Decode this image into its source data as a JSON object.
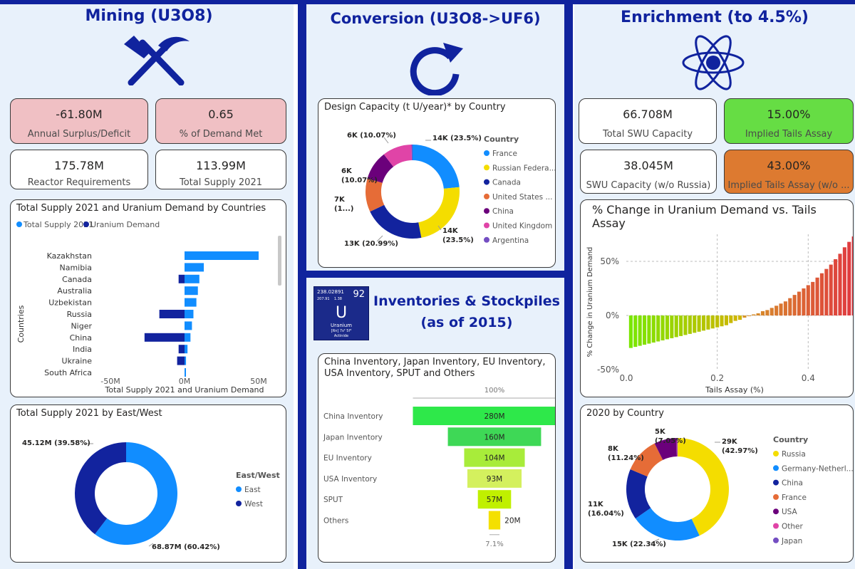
{
  "colors": {
    "navy": "#10239e",
    "panel": "#e8f1fb",
    "supply": "#118dff",
    "demand": "#12239e",
    "kpi_pink": "#f0c0c4",
    "kpi_green": "#66dd44",
    "kpi_orange": "#dd7a30"
  },
  "mining": {
    "title": "Mining (U3O8)",
    "icon": "hammer-pick-icon",
    "kpis": [
      {
        "value": "-61.80M",
        "label": "Annual Surplus/Deficit"
      },
      {
        "value": "0.65",
        "label": "% of Demand Met"
      },
      {
        "value": "175.78M",
        "label": "Reactor Requirements"
      },
      {
        "value": "113.99M",
        "label": "Total Supply 2021"
      }
    ]
  },
  "conversion": {
    "title": "Conversion (U3O8->UF6)",
    "icon": "refresh-icon"
  },
  "enrichment": {
    "title": "Enrichment (to 4.5%)",
    "icon": "atom-icon",
    "kpis": [
      {
        "value": "66.708M",
        "label": "Total SWU Capacity"
      },
      {
        "value": "15.00%",
        "label": "Implied Tails Assay"
      },
      {
        "value": "38.045M",
        "label": "SWU Capacity (w/o Russia)"
      },
      {
        "value": "43.00%",
        "label": "Implied Tails Assay  (w/o ..."
      }
    ]
  },
  "inventories": {
    "title_line1": "Inventories & Stockpiles",
    "title_line2": "(as of 2015)",
    "element_tile": {
      "mass": "238.02891",
      "number": "92",
      "row2": "207.91    1.38",
      "symbol": "U",
      "name": "Uranium",
      "config": "[Rn] 7s² 5f³",
      "category": "Actinide"
    }
  },
  "chart_data": [
    {
      "id": "supply-demand-by-country",
      "type": "bar",
      "orientation": "horizontal",
      "title": "Total Supply 2021 and Uranium Demand by Countries",
      "xlabel": "Total Supply 2021 and Uranium Demand",
      "ylabel": "Countries",
      "xlim": [
        -50,
        50
      ],
      "x_ticks": [
        "-50M",
        "0M",
        "50M"
      ],
      "categories": [
        "Kazakhstan",
        "Namibia",
        "Canada",
        "Australia",
        "Uzbekistan",
        "Russia",
        "Niger",
        "China",
        "India",
        "Ukraine",
        "South Africa"
      ],
      "series": [
        {
          "name": "Total Supply 2021",
          "color": "#118dff",
          "values": [
            50,
            13,
            10,
            9,
            8,
            6,
            5,
            4,
            2,
            1,
            0.5
          ]
        },
        {
          "name": "Uranium Demand",
          "color": "#12239e",
          "values": [
            0,
            0,
            -4,
            0,
            0,
            -17,
            0,
            -27,
            -4,
            -5,
            0
          ]
        }
      ],
      "legend_position": "top-left"
    },
    {
      "id": "supply-east-west",
      "type": "pie",
      "donut": true,
      "title": "Total Supply 2021 by East/West",
      "legend_title": "East/West",
      "slices": [
        {
          "name": "East",
          "value": 68.87,
          "label": "68.87M (60.42%)",
          "color": "#118dff"
        },
        {
          "name": "West",
          "value": 45.12,
          "label": "45.12M (39.58%)",
          "color": "#12239e"
        }
      ]
    },
    {
      "id": "design-capacity",
      "type": "pie",
      "donut": true,
      "title": "Design Capacity (t U/year)* by Country",
      "legend_title": "Country",
      "slices": [
        {
          "name": "France",
          "value": 23.5,
          "label": "14K (23.5%)",
          "color": "#118dff"
        },
        {
          "name": "Russian Federa...",
          "value": 23.5,
          "label": "14K (23.5%)",
          "color": "#f4dd00"
        },
        {
          "name": "Canada",
          "value": 20.99,
          "label": "13K (20.99%)",
          "color": "#12239e"
        },
        {
          "name": "United States ...",
          "value": 11.5,
          "label": "7K (1...)",
          "color": "#e66c37"
        },
        {
          "name": "China",
          "value": 10.07,
          "label": "6K (10.07%)",
          "color": "#6b007b"
        },
        {
          "name": "United Kingdom",
          "value": 10.07,
          "label": "6K (10.07%)",
          "color": "#e044a7"
        },
        {
          "name": "Argentina",
          "value": 0.37,
          "label": "",
          "color": "#744ec2"
        }
      ]
    },
    {
      "id": "inventories-funnel",
      "type": "bar",
      "style": "funnel",
      "title": "China Inventory, Japan Inventory, EU Inventory, USA Inventory, SPUT and Others",
      "top_label": "100%",
      "bottom_label": "7.1%",
      "categories": [
        "China Inventory",
        "Japan Inventory",
        "EU Inventory",
        "USA Inventory",
        "SPUT",
        "Others"
      ],
      "values": [
        280,
        160,
        104,
        93,
        57,
        20
      ],
      "labels": [
        "280M",
        "160M",
        "104M",
        "93M",
        "57M",
        "20M"
      ],
      "colors": [
        "#2ee84a",
        "#3ed856",
        "#a8ec3a",
        "#d4f05e",
        "#c0f000",
        "#f4e000"
      ]
    },
    {
      "id": "demand-vs-tails",
      "type": "bar",
      "title": "% Change in Uranium Demand vs. Tails Assay",
      "xlabel": "Tails Assay (%)",
      "ylabel": "% Change in Uranium Demand",
      "xlim": [
        0,
        0.47
      ],
      "ylim": [
        -50,
        75
      ],
      "x_ticks": [
        "0.0",
        "0.2",
        "0.4"
      ],
      "y_ticks": [
        "-50%",
        "0%",
        "50%"
      ],
      "x_start": 0.01,
      "x_step": 0.01,
      "values": [
        -30,
        -29,
        -28,
        -27,
        -26,
        -25,
        -24,
        -23,
        -22,
        -21,
        -20,
        -19,
        -18,
        -17,
        -16,
        -15,
        -14,
        -13,
        -12,
        -11,
        -10,
        -9,
        -7,
        -5,
        -4,
        -2,
        0,
        1,
        2,
        4,
        5,
        7,
        9,
        11,
        13,
        16,
        19,
        22,
        25,
        28,
        31,
        35,
        39,
        43,
        47,
        52,
        57,
        63,
        68,
        73
      ]
    },
    {
      "id": "enrichment-2020",
      "type": "pie",
      "donut": true,
      "title": "2020 by Country",
      "legend_title": "Country",
      "slices": [
        {
          "name": "Russia",
          "value": 42.97,
          "label": "29K (42.97%)",
          "color": "#f4dd00"
        },
        {
          "name": "Germany-Netherl...",
          "value": 22.34,
          "label": "15K (22.34%)",
          "color": "#118dff"
        },
        {
          "name": "China",
          "value": 16.04,
          "label": "11K (16.04%)",
          "color": "#12239e"
        },
        {
          "name": "France",
          "value": 11.24,
          "label": "8K (11.24%)",
          "color": "#e66c37"
        },
        {
          "name": "USA",
          "value": 7.05,
          "label": "5K (7.05%)",
          "color": "#6b007b"
        },
        {
          "name": "Other",
          "value": 0.2,
          "label": "",
          "color": "#e044a7"
        },
        {
          "name": "Japan",
          "value": 0.16,
          "label": "",
          "color": "#744ec2"
        }
      ]
    }
  ]
}
